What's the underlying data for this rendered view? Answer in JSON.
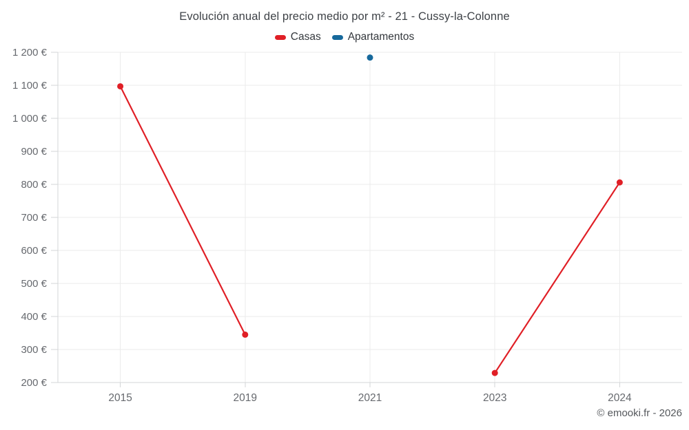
{
  "chart_data": {
    "type": "line",
    "title": "Evolución anual del precio medio por m² - 21 - Cussy-la-Colonne",
    "categories": [
      "2015",
      "2019",
      "2021",
      "2023",
      "2024"
    ],
    "series": [
      {
        "name": "Casas",
        "color": "#e01f26",
        "values": [
          1097,
          345,
          null,
          229,
          806
        ]
      },
      {
        "name": "Apartamentos",
        "color": "#17699c",
        "values": [
          null,
          null,
          1184,
          null,
          null
        ]
      }
    ],
    "xlabel": "",
    "ylabel": "",
    "ylim": [
      200,
      1200
    ],
    "ytick_step": 100,
    "y_tick_format": "{value} €",
    "grid": true,
    "legend_position": "top",
    "attribution": "© emooki.fr - 2026"
  }
}
